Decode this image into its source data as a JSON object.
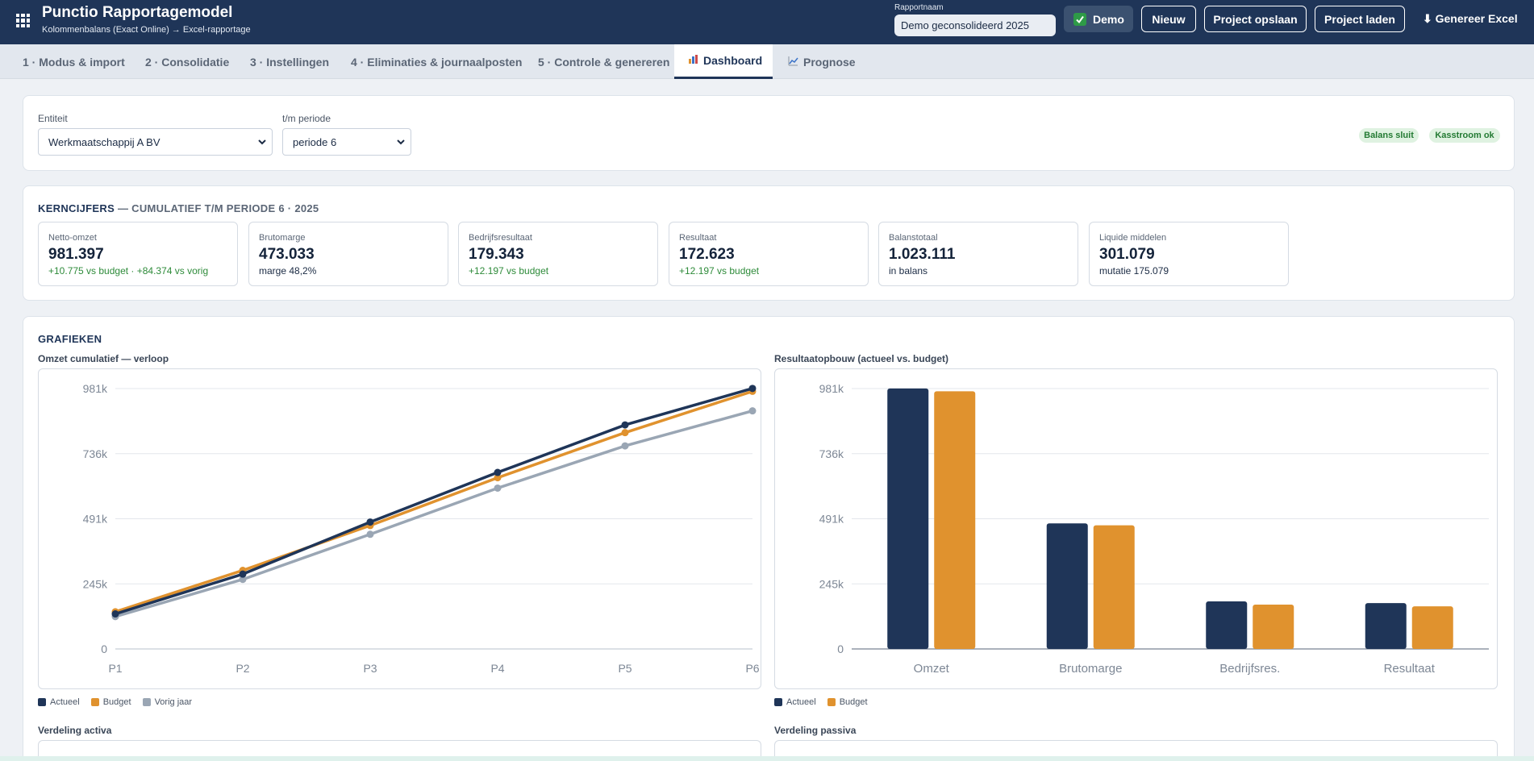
{
  "header": {
    "title": "Punctio Rapportagemodel",
    "subtitle": "Kolommenbalans (Exact Online) → Excel-rapportage",
    "report_name_label": "Rapportnaam",
    "report_name_value": "Demo geconsolideerd 2025",
    "demo_label": "Demo",
    "buttons": {
      "new": "Nieuw",
      "save": "Project opslaan",
      "load": "Project laden",
      "generate": "⬇ Genereer Excel"
    }
  },
  "tabs": [
    {
      "label": "1 · Modus & import"
    },
    {
      "label": "2 · Consolidatie"
    },
    {
      "label": "3 · Instellingen"
    },
    {
      "label": "4 · Eliminaties & journaalposten"
    },
    {
      "label": "5 · Controle & genereren"
    },
    {
      "label": "Dashboard",
      "icon": "bar-chart-icon",
      "active": true
    },
    {
      "label": "Prognose",
      "icon": "line-chart-icon"
    }
  ],
  "filters": {
    "entity_label": "Entiteit",
    "entity_value": "Werkmaatschappij A BV",
    "period_label": "t/m periode",
    "period_value": "periode 6",
    "badges": [
      "Balans sluit",
      "Kasstroom ok"
    ]
  },
  "kpis": {
    "title": "KERNCIJFERS",
    "subtitle": "— CUMULATIEF T/M PERIODE 6 · 2025",
    "items": [
      {
        "label": "Netto-omzet",
        "value": "981.397",
        "sub": "+10.775 vs budget · +84.374 vs vorig",
        "positive": true
      },
      {
        "label": "Brutomarge",
        "value": "473.033",
        "sub": "marge 48,2%",
        "positive": false
      },
      {
        "label": "Bedrijfsresultaat",
        "value": "179.343",
        "sub": "+12.197 vs budget",
        "positive": true
      },
      {
        "label": "Resultaat",
        "value": "172.623",
        "sub": "+12.197 vs budget",
        "positive": true
      },
      {
        "label": "Balanstotaal",
        "value": "1.023.111",
        "sub": "in balans",
        "positive": false
      },
      {
        "label": "Liquide middelen",
        "value": "301.079",
        "sub": "mutatie 175.079",
        "positive": false
      }
    ]
  },
  "charts_section": {
    "title": "GRAFIEKEN",
    "bottom_left_title": "Verdeling activa",
    "bottom_right_title": "Verdeling passiva"
  },
  "colors": {
    "actueel": "#1f3558",
    "budget": "#e0922e",
    "vorig_jaar": "#9aa6b4",
    "brand": "#1f3558"
  },
  "chart_data": [
    {
      "type": "line",
      "title": "Omzet cumulatief — verloop",
      "x": [
        "P1",
        "P2",
        "P3",
        "P4",
        "P5",
        "P6"
      ],
      "y_ticks": [
        "0",
        "245k",
        "491k",
        "736k",
        "981k"
      ],
      "ylim": [
        0,
        981000
      ],
      "series": [
        {
          "name": "Actueel",
          "values": [
            132000,
            282000,
            478000,
            665000,
            844000,
            981397
          ]
        },
        {
          "name": "Budget",
          "values": [
            140000,
            296000,
            465000,
            645000,
            815000,
            970622
          ]
        },
        {
          "name": "Vorig jaar",
          "values": [
            122000,
            262000,
            432000,
            606000,
            765000,
            897023
          ]
        }
      ],
      "legend": "bottom-left",
      "grid": true
    },
    {
      "type": "bar",
      "title": "Resultaatopbouw (actueel vs. budget)",
      "categories": [
        "Omzet",
        "Brutomarge",
        "Bedrijfsres.",
        "Resultaat"
      ],
      "y_ticks": [
        "0",
        "245k",
        "491k",
        "736k",
        "981k"
      ],
      "ylim": [
        0,
        981000
      ],
      "series": [
        {
          "name": "Actueel",
          "values": [
            981397,
            473033,
            179343,
            172623
          ]
        },
        {
          "name": "Budget",
          "values": [
            970622,
            466000,
            167146,
            160426
          ]
        }
      ],
      "legend": "bottom-left",
      "grid": true
    }
  ]
}
